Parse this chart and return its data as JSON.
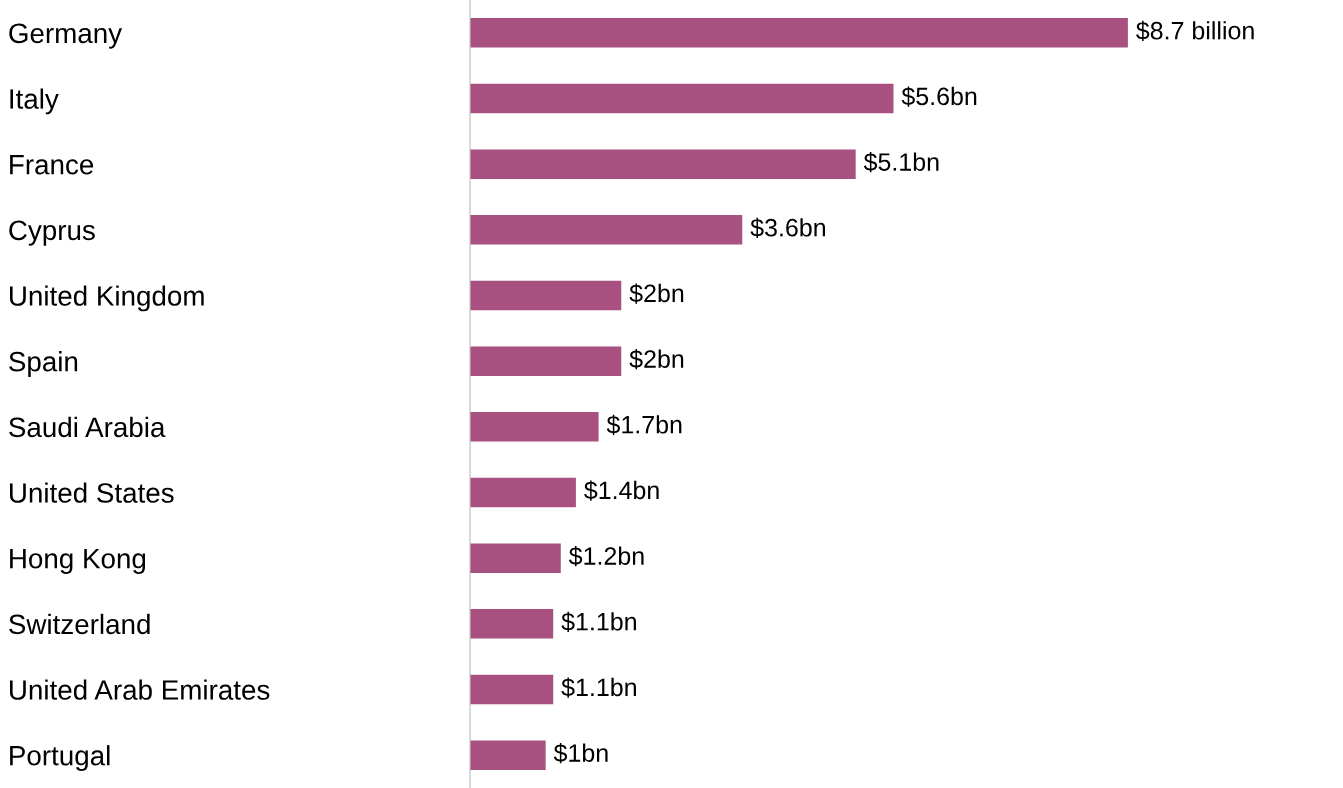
{
  "chart_data": {
    "type": "bar",
    "orientation": "horizontal",
    "categories": [
      "Germany",
      "Italy",
      "France",
      "Cyprus",
      "United Kingdom",
      "Spain",
      "Saudi Arabia",
      "United States",
      "Hong Kong",
      "Switzerland",
      "United Arab Emirates",
      "Portugal"
    ],
    "values": [
      8.7,
      5.6,
      5.1,
      3.6,
      2,
      2,
      1.7,
      1.4,
      1.2,
      1.1,
      1.1,
      1
    ],
    "value_labels": [
      "$8.7 billion",
      "$5.6bn",
      "$5.1bn",
      "$3.6bn",
      "$2bn",
      "$2bn",
      "$1.7bn",
      "$1.4bn",
      "$1.2bn",
      "$1.1bn",
      "$1.1bn",
      "$1bn"
    ],
    "color": "#a8507f"
  }
}
